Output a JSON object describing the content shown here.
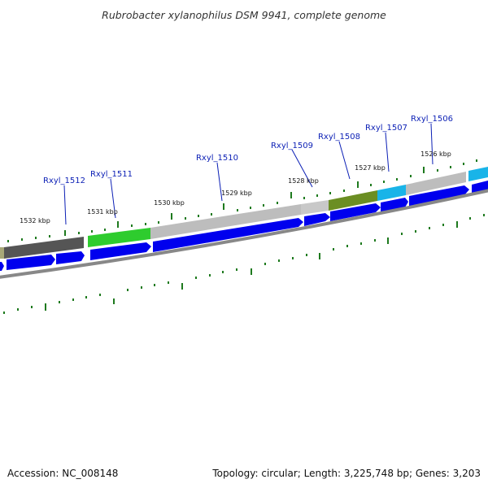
{
  "title": "Rubrobacter xylanophilus DSM 9941, complete genome",
  "gene_labels": [
    {
      "name": "Rxyl_1512"
    },
    {
      "name": "Rxyl_1511"
    },
    {
      "name": "Rxyl_1510"
    },
    {
      "name": "Rxyl_1509"
    },
    {
      "name": "Rxyl_1508"
    },
    {
      "name": "Rxyl_1507"
    },
    {
      "name": "Rxyl_1506"
    }
  ],
  "kbp_labels": [
    "1532 kbp",
    "1531 kbp",
    "1530 kbp",
    "1529 kbp",
    "1528 kbp",
    "1527 kbp",
    "1526 kbp"
  ],
  "footer": {
    "accession": "Accession: NC_008148",
    "summary": "Topology: circular; Length: 3,225,748 bp; Genes: 3,203"
  },
  "colors": {
    "gene_label": "#0b1fb5",
    "cds_arrow": "#0000ee",
    "tick": "#1e7a1e",
    "backbone": "#888888",
    "feature_dark_gray": "#555555",
    "feature_green": "#2ecc2e",
    "feature_light_gray": "#bdbdbd",
    "feature_olive": "#6b8e23",
    "feature_cyan": "#19b4e8"
  }
}
